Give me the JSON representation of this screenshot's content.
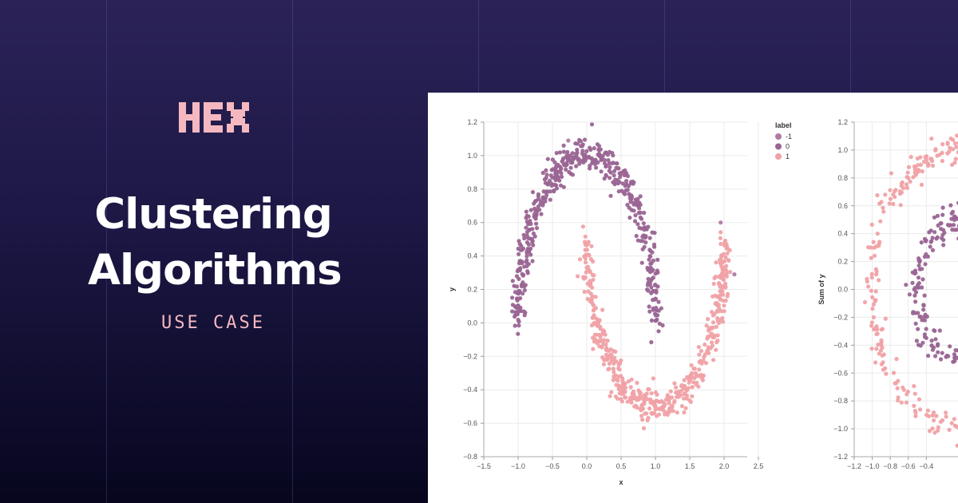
{
  "brand": {
    "logo_text": "HEX",
    "logo_color": "#f5b8c0"
  },
  "hero": {
    "title_line1": "Clustering",
    "title_line2": "Algorithms",
    "subtitle": "USE CASE"
  },
  "colors": {
    "label_neg1": "#b07aa1",
    "label_0": "#9a6593",
    "label_1": "#f0a2a6"
  },
  "chart_data": [
    {
      "type": "scatter",
      "title": "",
      "xlabel": "x",
      "ylabel": "y",
      "xlim": [
        -1.5,
        2.5
      ],
      "ylim": [
        -0.8,
        1.2
      ],
      "x_ticks": [
        "−1.5",
        "−1.0",
        "−0.5",
        "0.0",
        "0.5",
        "1.0",
        "1.5",
        "2.0",
        "2.5"
      ],
      "y_ticks": [
        "1.2",
        "1.0",
        "0.8",
        "0.6",
        "0.4",
        "0.2",
        "0.0",
        "−0.2",
        "−0.4",
        "−0.6",
        "−0.8"
      ],
      "grid": true,
      "legend": {
        "title": "label",
        "position": "top-right",
        "entries": [
          {
            "label": "-1",
            "color": "#b07aa1"
          },
          {
            "label": "0",
            "color": "#9a6593"
          },
          {
            "label": "1",
            "color": "#f0a2a6"
          }
        ]
      },
      "series": [
        {
          "name": "0",
          "color": "#9a6593",
          "shape": "upper_moon",
          "center": [
            0.0,
            0.0
          ],
          "radius": 1.0,
          "angle_range_deg": [
            0,
            180
          ],
          "noise": 0.05,
          "n_points": 480
        },
        {
          "name": "1",
          "color": "#f0a2a6",
          "shape": "lower_moon",
          "center": [
            1.0,
            0.5
          ],
          "radius": 1.0,
          "angle_range_deg": [
            180,
            360
          ],
          "noise": 0.05,
          "n_points": 480
        },
        {
          "name": "-1",
          "color": "#b07aa1",
          "points": [
            [
              2.15,
              0.29
            ],
            [
              -0.27,
              1.09
            ],
            [
              1.95,
              0.6
            ]
          ]
        }
      ]
    },
    {
      "type": "scatter",
      "title": "",
      "xlabel": "",
      "ylabel": "Sum of y",
      "xlim": [
        -1.2,
        0.5
      ],
      "ylim": [
        -1.2,
        1.2
      ],
      "x_ticks": [
        "−1.2",
        "−1.0",
        "−0.8",
        "−0.6",
        "−0.4"
      ],
      "y_ticks": [
        "1.2",
        "1.0",
        "0.8",
        "0.6",
        "0.4",
        "0.2",
        "0.0",
        "−0.2",
        "−0.4",
        "−0.6",
        "−0.8",
        "−1.0",
        "−1.2"
      ],
      "grid": true,
      "series": [
        {
          "name": "1",
          "color": "#f0a2a6",
          "shape": "outer_circle",
          "center": [
            0.0,
            0.0
          ],
          "radius": 1.0,
          "noise": 0.05,
          "n_points": 420
        },
        {
          "name": "0",
          "color": "#9a6593",
          "shape": "inner_circle",
          "center": [
            0.0,
            0.0
          ],
          "radius": 0.5,
          "noise": 0.05,
          "n_points": 260
        }
      ]
    }
  ]
}
